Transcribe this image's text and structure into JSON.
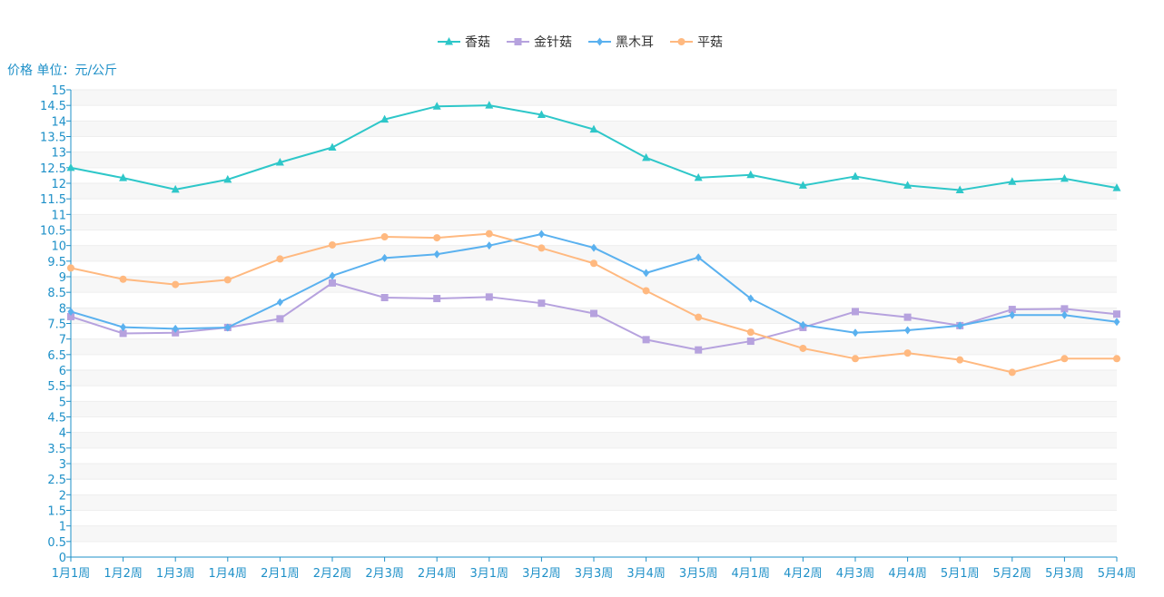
{
  "chart_data": {
    "type": "line",
    "title": "",
    "ylabel": "价格 单位：元/公斤",
    "xlabel": "",
    "ylim": [
      0,
      15
    ],
    "ytick_step": 0.5,
    "grid": "horizontal bands",
    "legend_position": "top-center",
    "categories": [
      "1月1周",
      "1月2周",
      "1月3周",
      "1月4周",
      "2月1周",
      "2月2周",
      "2月3周",
      "2月4周",
      "3月1周",
      "3月2周",
      "3月3周",
      "3月4周",
      "3月5周",
      "4月1周",
      "4月2周",
      "4月3周",
      "4月4周",
      "5月1周",
      "5月2周",
      "5月3周",
      "5月4周"
    ],
    "series": [
      {
        "name": "香菇",
        "color": "#2ec7c9",
        "marker": "triangle",
        "values": [
          12.5,
          12.17,
          11.8,
          12.12,
          12.67,
          13.15,
          14.05,
          14.47,
          14.5,
          14.2,
          13.73,
          12.82,
          12.18,
          12.27,
          11.93,
          12.22,
          11.93,
          11.78,
          12.05,
          12.15,
          11.85
        ]
      },
      {
        "name": "金针菇",
        "color": "#b6a2de",
        "marker": "square",
        "values": [
          7.72,
          7.18,
          7.2,
          7.37,
          7.65,
          8.8,
          8.33,
          8.3,
          8.35,
          8.15,
          7.82,
          6.98,
          6.65,
          6.93,
          7.37,
          7.88,
          7.7,
          7.43,
          7.95,
          7.97,
          7.8
        ]
      },
      {
        "name": "黑木耳",
        "color": "#5ab1ef",
        "marker": "diamond",
        "values": [
          7.88,
          7.38,
          7.33,
          7.37,
          8.18,
          9.03,
          9.6,
          9.72,
          10.0,
          10.37,
          9.93,
          9.12,
          9.62,
          8.3,
          7.45,
          7.2,
          7.28,
          7.43,
          7.77,
          7.77,
          7.55
        ]
      },
      {
        "name": "平菇",
        "color": "#ffb980",
        "marker": "circle",
        "values": [
          9.28,
          8.92,
          8.75,
          8.9,
          9.57,
          10.02,
          10.28,
          10.25,
          10.38,
          9.92,
          9.43,
          8.55,
          7.7,
          7.22,
          6.7,
          6.37,
          6.55,
          6.33,
          5.93,
          6.37,
          6.37
        ]
      }
    ]
  }
}
